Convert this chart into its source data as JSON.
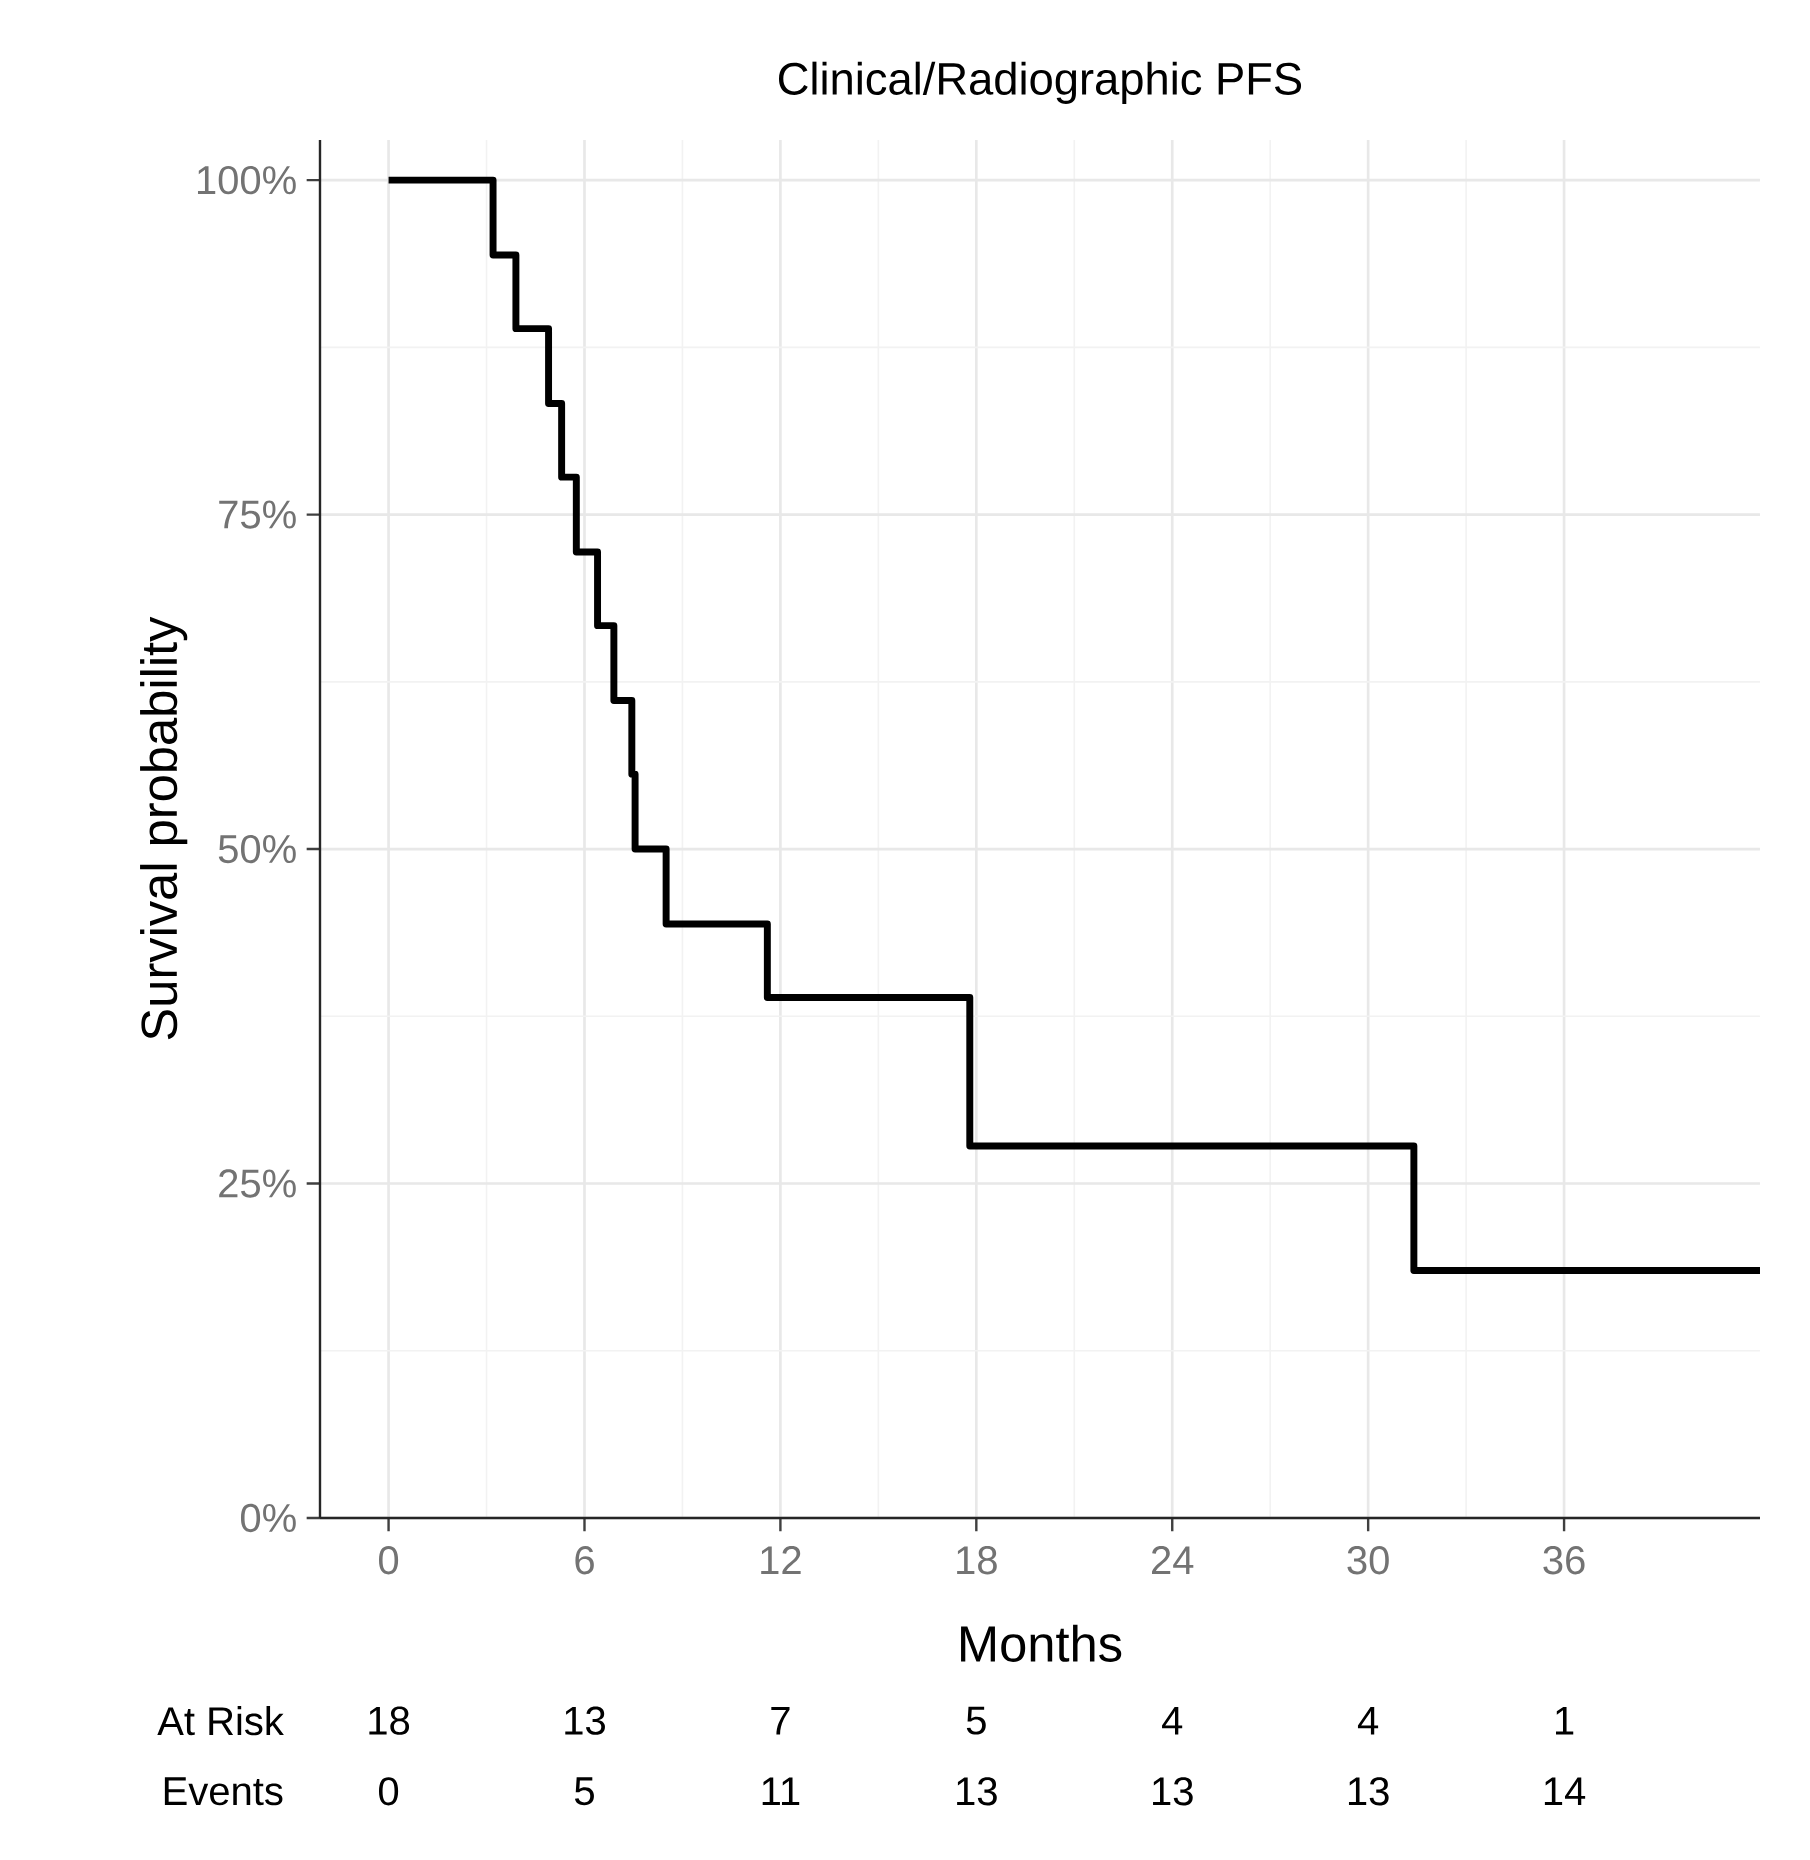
{
  "chart_data": {
    "type": "step",
    "title": "Clinical/Radiographic PFS",
    "xlabel": "Months",
    "ylabel": "Survival probability",
    "x": [
      0,
      3.2,
      3.9,
      4.9,
      5.3,
      5.75,
      6.4,
      6.9,
      7.45,
      7.55,
      8.5,
      11.6,
      17.8,
      31.4,
      42.0
    ],
    "values": [
      100,
      94.4,
      88.9,
      83.3,
      77.8,
      72.2,
      66.7,
      61.1,
      55.6,
      50,
      44.4,
      38.9,
      27.8,
      18.5,
      18.5
    ],
    "color": "#000000",
    "xlim": [
      -2.1,
      42
    ],
    "xticks": [
      0,
      6,
      12,
      18,
      24,
      30,
      36
    ],
    "ylim": [
      0,
      103
    ],
    "yticks": [
      {
        "value": 0,
        "label": "0%"
      },
      {
        "value": 25,
        "label": "25%"
      },
      {
        "value": 50,
        "label": "50%"
      },
      {
        "value": 75,
        "label": "75%"
      },
      {
        "value": 100,
        "label": "100%"
      }
    ],
    "grid": true,
    "annotations": [
      "At Risk",
      "18",
      "13",
      "7",
      "5",
      "4",
      "4",
      "1",
      "Events",
      "0",
      "5",
      "11",
      "13",
      "13",
      "13",
      "14"
    ]
  }
}
